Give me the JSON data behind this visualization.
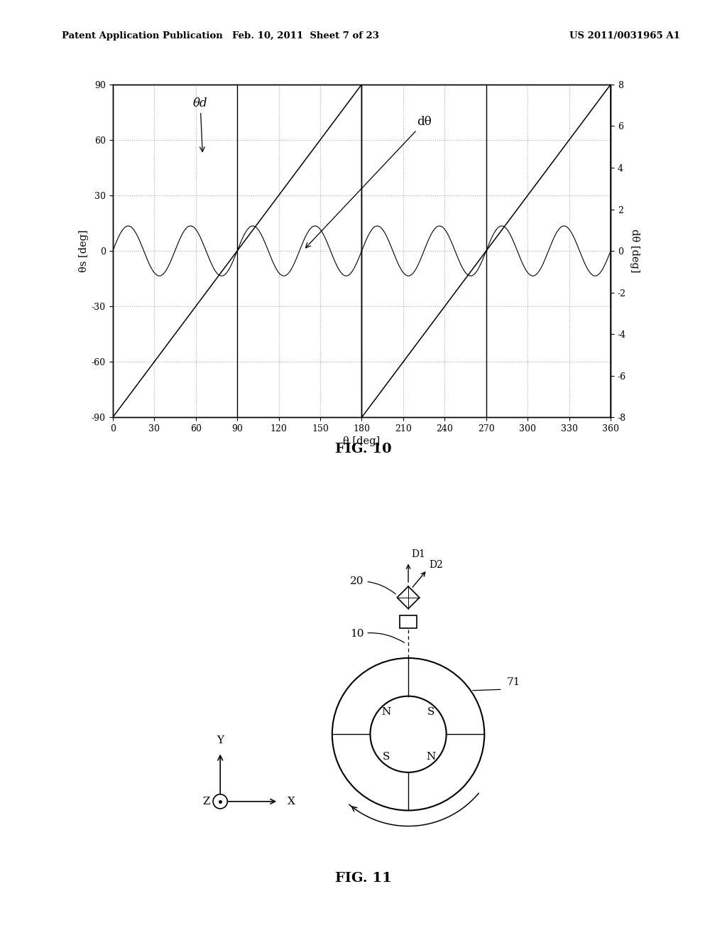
{
  "header_left": "Patent Application Publication",
  "header_center": "Feb. 10, 2011  Sheet 7 of 23",
  "header_right": "US 2011/0031965 A1",
  "fig10_title": "FIG. 10",
  "fig11_title": "FIG. 11",
  "plot_xlabel": "θ [deg]",
  "plot_ylabel_left": "θs [deg]",
  "plot_ylabel_right": "dθ [deg]",
  "plot_xticks": [
    0,
    30,
    60,
    90,
    120,
    150,
    180,
    210,
    240,
    270,
    300,
    330,
    360
  ],
  "plot_yticks_left": [
    -90,
    -60,
    -30,
    0,
    30,
    60,
    90
  ],
  "plot_yticks_right": [
    -8,
    -6,
    -4,
    -2,
    0,
    2,
    4,
    6,
    8
  ],
  "xlim": [
    0,
    360
  ],
  "ylim_left": [
    -90,
    90
  ],
  "ylim_right": [
    -8,
    8
  ],
  "annotation_theta_d": "θd",
  "annotation_dtheta": "dθ",
  "background_color": "#ffffff",
  "line_color": "#000000",
  "grid_dot_color": "#aaaaaa"
}
